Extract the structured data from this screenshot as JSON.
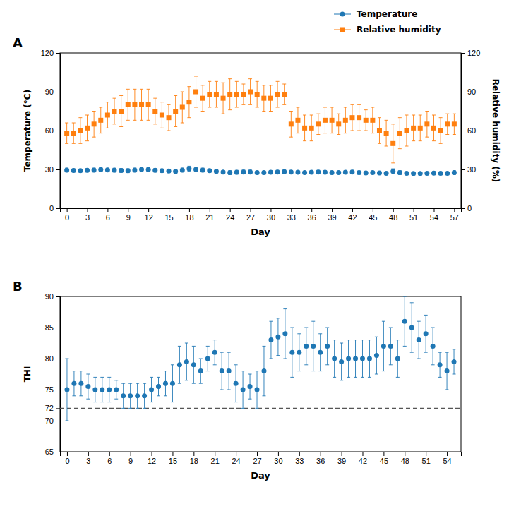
{
  "chart_data": [
    {
      "type": "scatter",
      "title": "A",
      "xlabel": "Day",
      "ylabel": "Temperature (°C)",
      "y2label": "Relative humidity (%)",
      "x": [
        0,
        1,
        2,
        3,
        4,
        5,
        6,
        7,
        8,
        9,
        10,
        11,
        12,
        13,
        14,
        15,
        16,
        17,
        18,
        19,
        20,
        21,
        22,
        23,
        24,
        25,
        26,
        27,
        28,
        29,
        30,
        31,
        32,
        33,
        34,
        35,
        36,
        37,
        38,
        39,
        40,
        41,
        42,
        43,
        44,
        45,
        46,
        47,
        48,
        49,
        50,
        51,
        52,
        53,
        54,
        55,
        56,
        57
      ],
      "series": [
        {
          "name": "Temperature",
          "marker": "circle",
          "values": [
            29.5,
            29.2,
            29.0,
            29.3,
            29.5,
            29.8,
            29.6,
            29.4,
            29.2,
            29.0,
            29.5,
            30.0,
            29.8,
            29.3,
            29.0,
            28.8,
            28.5,
            29.5,
            30.5,
            30.0,
            29.5,
            29.0,
            28.5,
            28.0,
            27.5,
            27.8,
            28.0,
            28.0,
            27.5,
            27.5,
            27.8,
            28.0,
            28.2,
            28.0,
            27.8,
            27.5,
            27.8,
            28.0,
            27.8,
            27.5,
            27.5,
            27.8,
            28.0,
            27.5,
            27.3,
            27.5,
            27.3,
            27.0,
            28.5,
            27.5,
            27.0,
            26.8,
            26.8,
            27.0,
            27.2,
            27.0,
            27.0,
            27.5
          ],
          "errors": [
            1.5,
            1.2,
            1.0,
            1.3,
            1.5,
            1.5,
            1.3,
            1.5,
            1.5,
            1.5,
            1.5,
            1.5,
            1.5,
            1.3,
            1.2,
            1.0,
            1.5,
            1.5,
            2.0,
            1.8,
            1.5,
            1.3,
            1.2,
            1.0,
            1.5,
            1.5,
            1.5,
            1.5,
            1.2,
            1.2,
            1.2,
            1.3,
            1.3,
            1.2,
            1.2,
            1.0,
            1.2,
            1.3,
            1.2,
            1.2,
            1.0,
            1.2,
            1.3,
            1.2,
            1.0,
            1.0,
            1.0,
            1.0,
            2.0,
            1.5,
            1.0,
            1.0,
            1.0,
            1.0,
            1.2,
            1.0,
            1.0,
            1.5
          ]
        },
        {
          "name": "Relative humidity",
          "marker": "square",
          "axis": "y2",
          "values": [
            58,
            58,
            60,
            62,
            65,
            68,
            72,
            75,
            75,
            80,
            80,
            80,
            80,
            75,
            72,
            70,
            75,
            78,
            82,
            90,
            85,
            88,
            88,
            85,
            88,
            88,
            88,
            90,
            88,
            85,
            85,
            88,
            88,
            65,
            68,
            62,
            62,
            65,
            68,
            68,
            65,
            68,
            70,
            70,
            68,
            68,
            60,
            58,
            50,
            58,
            60,
            62,
            62,
            65,
            62,
            60,
            65,
            65
          ],
          "errors": [
            8,
            8,
            10,
            10,
            10,
            10,
            10,
            10,
            12,
            12,
            12,
            12,
            12,
            10,
            10,
            10,
            12,
            12,
            12,
            12,
            10,
            10,
            10,
            12,
            12,
            10,
            8,
            10,
            10,
            10,
            10,
            10,
            8,
            10,
            10,
            10,
            10,
            8,
            10,
            10,
            8,
            10,
            10,
            10,
            8,
            10,
            10,
            10,
            15,
            12,
            12,
            10,
            10,
            10,
            10,
            10,
            8,
            8
          ]
        }
      ],
      "xlim": [
        -1,
        58
      ],
      "xticks": [
        0,
        3,
        6,
        9,
        12,
        15,
        18,
        21,
        24,
        27,
        30,
        33,
        36,
        39,
        42,
        45,
        48,
        51,
        54,
        57
      ],
      "ylim": [
        0,
        120
      ],
      "yticks": [
        0,
        30,
        60,
        90,
        120
      ],
      "y2lim": [
        0,
        120
      ],
      "y2ticks": [
        0,
        30,
        60,
        90,
        120
      ],
      "grid": false,
      "legend": "upper right"
    },
    {
      "type": "scatter",
      "title": "B",
      "xlabel": "Day",
      "ylabel": "THI",
      "x": [
        0,
        1,
        2,
        3,
        4,
        5,
        6,
        7,
        8,
        9,
        10,
        11,
        12,
        13,
        14,
        15,
        16,
        17,
        18,
        19,
        20,
        21,
        22,
        23,
        24,
        25,
        26,
        27,
        28,
        29,
        30,
        31,
        32,
        33,
        34,
        35,
        36,
        37,
        38,
        39,
        40,
        41,
        42,
        43,
        44,
        45,
        46,
        47,
        48,
        49,
        50,
        51,
        52,
        53,
        54,
        55
      ],
      "series": [
        {
          "marker": "circle",
          "values": [
            75,
            76,
            76,
            75.5,
            75,
            75,
            75,
            75,
            74,
            74,
            74,
            74,
            75,
            75.5,
            76,
            76,
            79,
            79.5,
            79,
            78,
            80,
            81,
            78,
            78,
            76,
            75,
            75.5,
            75,
            78,
            83,
            83.5,
            84,
            81,
            81,
            82,
            82,
            81,
            82,
            80,
            79.5,
            80,
            80,
            80,
            80,
            80.5,
            82,
            82,
            80,
            86,
            85,
            83,
            84,
            82,
            79,
            78,
            79.5
          ],
          "errors": [
            5,
            2,
            2,
            2,
            2,
            2,
            2,
            1.5,
            2,
            2,
            2,
            2,
            2,
            1.5,
            2,
            3,
            3,
            3,
            3,
            2,
            2,
            2,
            3,
            3,
            3,
            3,
            2,
            3,
            4,
            3,
            3,
            4,
            4,
            3,
            3,
            4,
            3,
            3,
            3,
            3,
            3,
            3,
            3,
            3,
            3,
            4,
            3,
            3,
            4,
            4,
            3,
            3,
            3,
            2,
            3,
            2
          ]
        }
      ],
      "reference_line": 72,
      "xlim": [
        -1,
        56
      ],
      "xticks": [
        0,
        3,
        6,
        9,
        12,
        15,
        18,
        21,
        24,
        27,
        30,
        33,
        36,
        39,
        42,
        45,
        48,
        51,
        54
      ],
      "ylim": [
        65,
        90
      ],
      "yticks": [
        65,
        70,
        72,
        75,
        80,
        85,
        90
      ],
      "grid": false
    }
  ]
}
